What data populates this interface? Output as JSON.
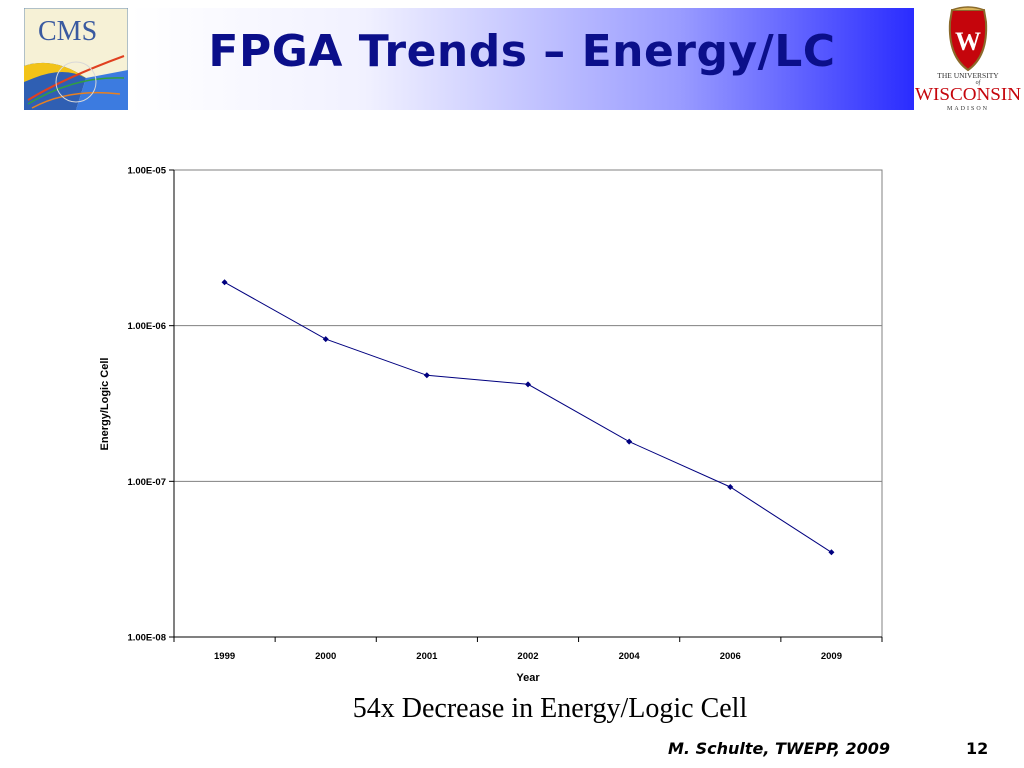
{
  "slide": {
    "title": "FPGA Trends – Energy/LC",
    "caption": "54x Decrease in Energy/Logic Cell",
    "footer_author": "M. Schulte, TWEPP, 2009",
    "page_number": "12",
    "cms_logo_text": "CMS",
    "uw_logo": {
      "line1": "THE UNIVERSITY",
      "line2": "of",
      "name": "WISCONSIN",
      "sub": "MADISON",
      "shield_letter": "W"
    },
    "colors": {
      "title": "#0b0f8a",
      "header_gradient_end": "#2a2cff",
      "series_line": "#00007f",
      "uw_red": "#c5050c"
    }
  },
  "chart_data": {
    "type": "line",
    "categories": [
      "1999",
      "2000",
      "2001",
      "2002",
      "2004",
      "2006",
      "2009"
    ],
    "series": [
      {
        "values": [
          1.9e-06,
          8.2e-07,
          4.8e-07,
          4.2e-07,
          1.8e-07,
          9.2e-08,
          3.5e-08
        ]
      }
    ],
    "xlabel": "Year",
    "ylabel": "Energy/Logic Cell",
    "y_scale": "log",
    "ylim": [
      1e-08,
      1e-05
    ],
    "y_ticks": [
      "1.00E-08",
      "1.00E-07",
      "1.00E-06",
      "1.00E-05"
    ],
    "grid": "horizontal",
    "legend": "none"
  }
}
